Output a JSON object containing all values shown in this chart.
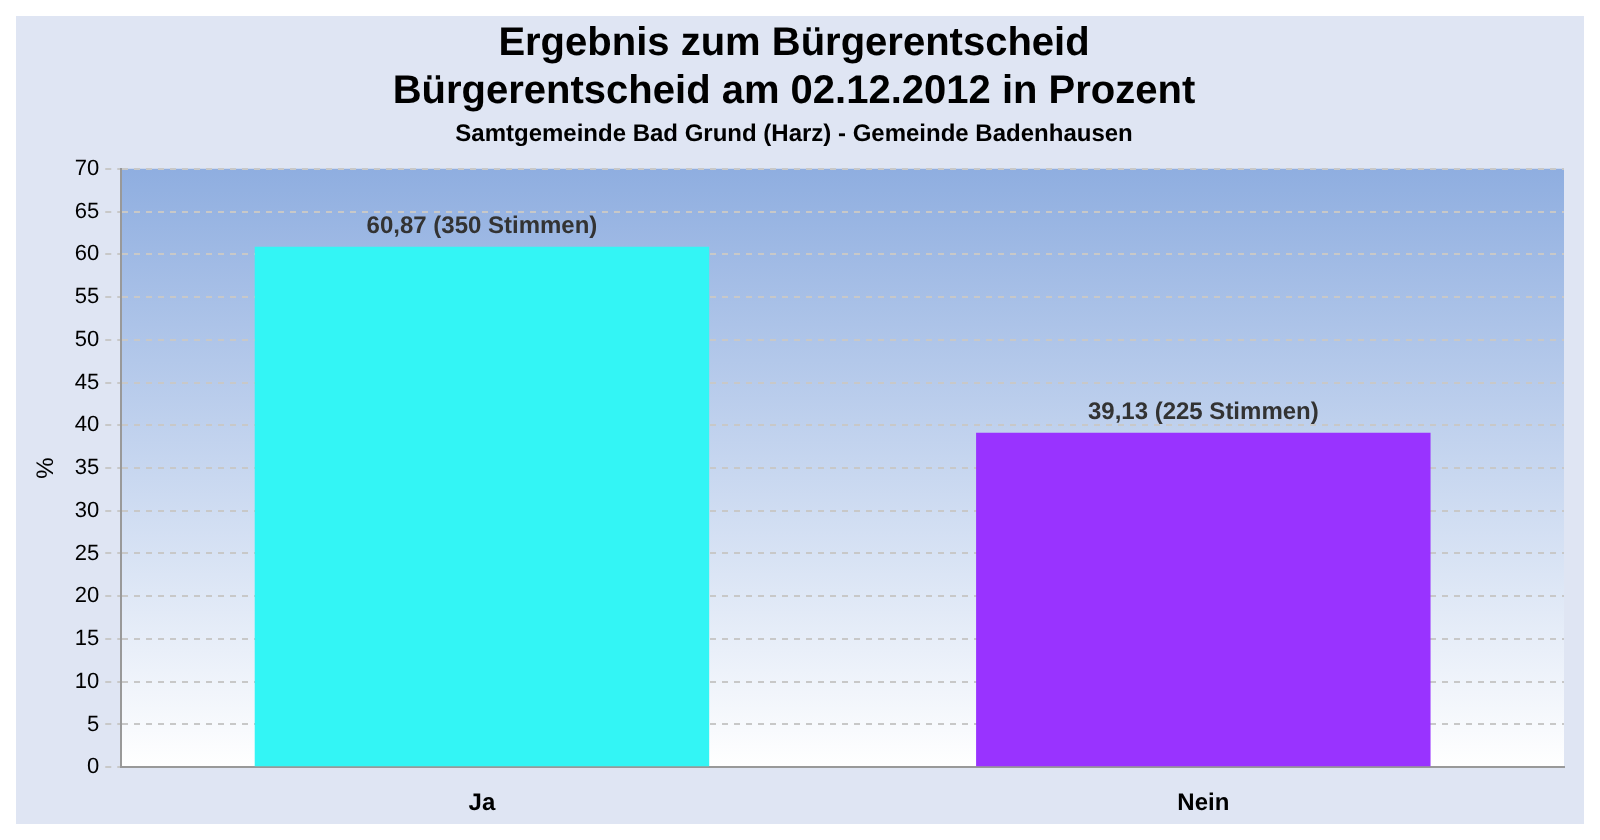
{
  "chart_data": {
    "type": "bar",
    "title": "Ergebnis zum Bürgerentscheid\nBürgerentscheid am 02.12.2012 in Prozent",
    "subtitle": "Samtgemeinde Bad Grund (Harz) - Gemeinde Badenhausen",
    "ylabel": "%",
    "categories": [
      "Ja",
      "Nein"
    ],
    "values": [
      60.87,
      39.13
    ],
    "colors": [
      "#33f5f5",
      "#9933ff"
    ],
    "value_labels": [
      "60,87 (350 Stimmen)",
      "39,13 (225 Stimmen)"
    ],
    "ylim": [
      0,
      70
    ],
    "yticks": [
      0,
      5,
      10,
      15,
      20,
      25,
      30,
      35,
      40,
      45,
      50,
      55,
      60,
      65,
      70
    ],
    "grid": "y",
    "legend": false
  }
}
